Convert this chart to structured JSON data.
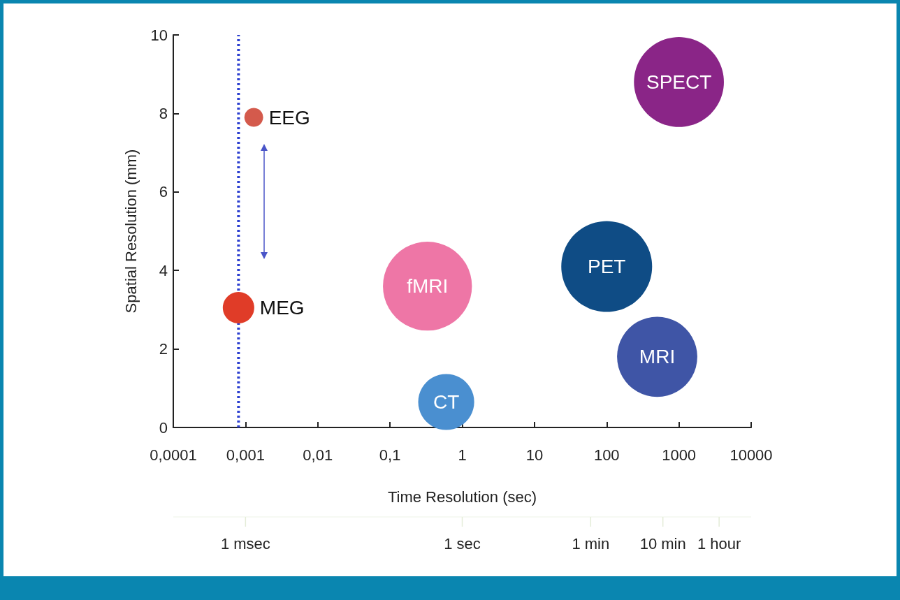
{
  "chart_data": {
    "type": "bubble",
    "xlabel": "Time Resolution (sec)",
    "ylabel": "Spatial Resolution (mm)",
    "series": [
      {
        "name": "MEG",
        "color": "#e03c28",
        "x": [
          0.0008
        ],
        "values": [
          3.05
        ],
        "sizes": [
          0.12
        ]
      },
      {
        "name": "EEG",
        "color": "#d45a4c",
        "x": [
          0.0013
        ],
        "values": [
          7.9
        ],
        "sizes": [
          0.043
        ]
      },
      {
        "name": "fMRI",
        "color": "#ee76a6",
        "x": [
          0.33
        ],
        "values": [
          3.6
        ],
        "sizes": [
          0.96
        ]
      },
      {
        "name": "CT",
        "color": "#4a8fd0",
        "x": [
          0.6
        ],
        "values": [
          0.65
        ],
        "sizes": [
          0.38
        ]
      },
      {
        "name": "PET",
        "color": "#0f4c85",
        "x": [
          100
        ],
        "values": [
          4.1
        ],
        "sizes": [
          1
        ]
      },
      {
        "name": "MRI",
        "color": "#3f55a6",
        "x": [
          500
        ],
        "values": [
          1.8
        ],
        "sizes": [
          0.78
        ]
      },
      {
        "name": "SPECT",
        "color": "#8a2587",
        "x": [
          1000
        ],
        "values": [
          8.8
        ],
        "sizes": [
          0.98
        ]
      }
    ],
    "xlim": [
      0.0001,
      10000
    ],
    "xticks": [
      {
        "value": 0.0001,
        "label": "0,0001"
      },
      {
        "value": 0.001,
        "label": "0,001"
      },
      {
        "value": 0.01,
        "label": "0,01"
      },
      {
        "value": 0.1,
        "label": "0,1"
      },
      1,
      10,
      100,
      1000,
      10000
    ],
    "ylim": [
      0,
      10
    ],
    "yticks": [
      0,
      2,
      4,
      6,
      8,
      10
    ],
    "log": "x",
    "grid": false,
    "legend": false,
    "ref_lines": [
      {
        "axis": "x",
        "value": 0.0008,
        "color": "#2c3fd0",
        "line_style": "dotted"
      },
      {
        "axis": "x",
        "value": 0.001,
        "label": "1 msec",
        "color": "#e4ecd8"
      },
      {
        "axis": "x",
        "value": 1,
        "label": "1 sec",
        "color": "#e4ecd8"
      },
      {
        "axis": "x",
        "value": 60,
        "label": "1 min",
        "color": "#e4ecd8"
      },
      {
        "axis": "x",
        "value": 600,
        "label": "10 min",
        "color": "#e4ecd8"
      },
      {
        "axis": "x",
        "value": 3600,
        "label": "1 hour",
        "color": "#e4ecd8"
      }
    ]
  }
}
